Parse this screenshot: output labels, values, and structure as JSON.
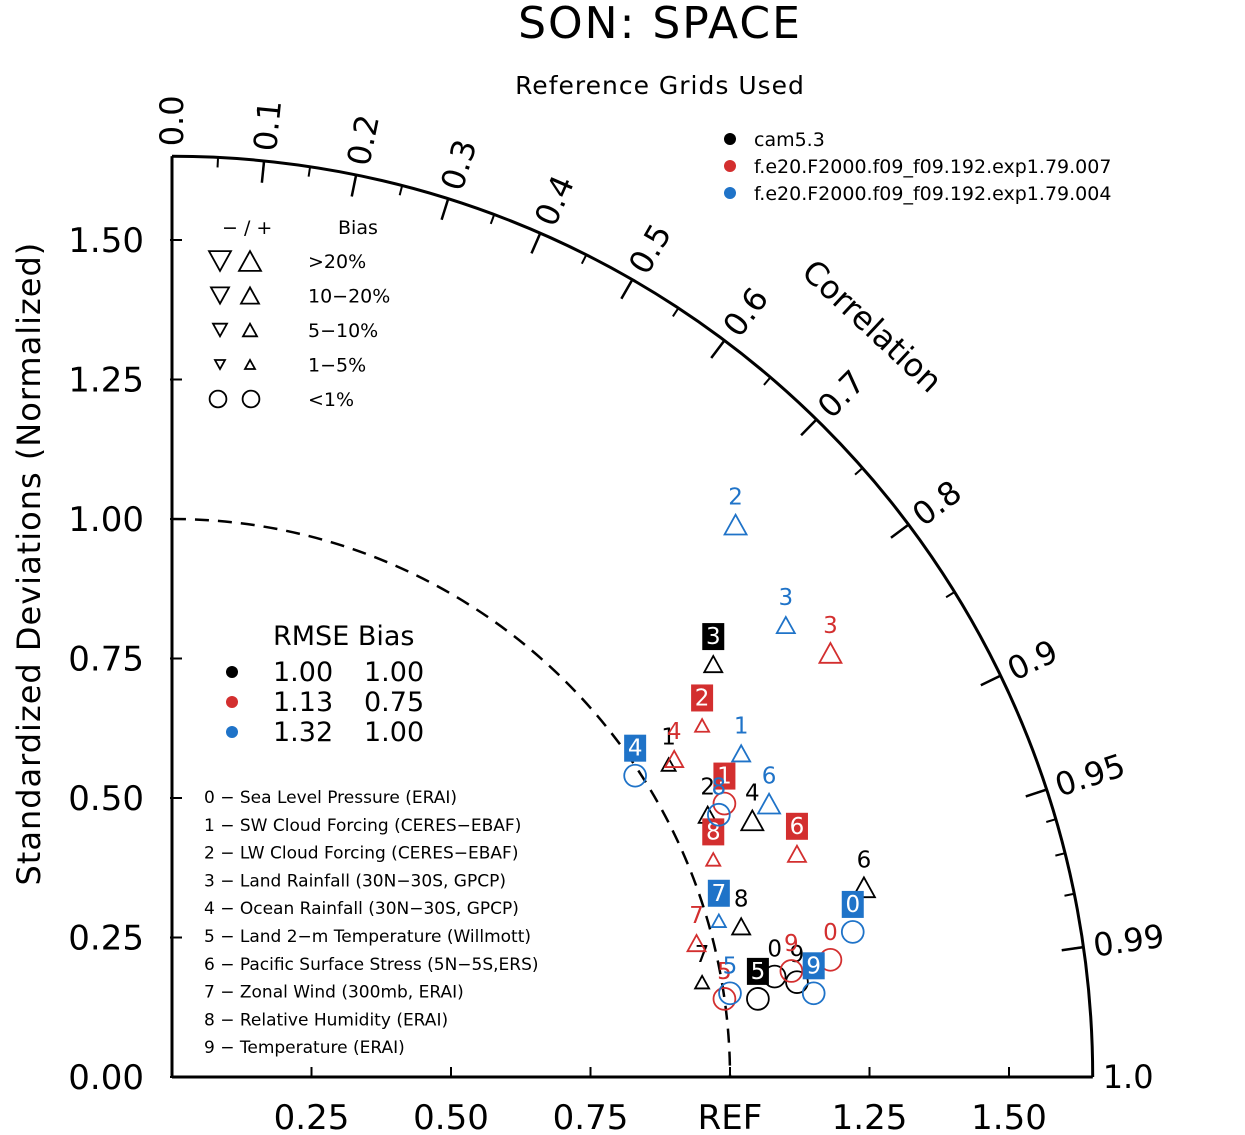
{
  "title": "SON: SPACE",
  "subtitle": "Reference Grids Used",
  "colors": {
    "cam5.3": "#000000",
    "exp007": "#d32f2f",
    "exp004": "#1f73c8"
  },
  "chart_data": {
    "type": "scatter",
    "diagram": "taylor",
    "title": "SON: SPACE",
    "subtitle": "Reference Grids Used",
    "ylabel": "Standardized Deviations (Normalized)",
    "correlation_label": "Correlation",
    "x_ticks": [
      "0.25",
      "0.50",
      "0.75",
      "REF",
      "1.25",
      "1.50"
    ],
    "y_ticks": [
      "0.00",
      "0.25",
      "0.50",
      "0.75",
      "1.00",
      "1.25",
      "1.50"
    ],
    "correlation_ticks": [
      "0.0",
      "0.1",
      "0.2",
      "0.3",
      "0.4",
      "0.5",
      "0.6",
      "0.7",
      "0.8",
      "0.9",
      "0.95",
      "0.99",
      "1.0"
    ],
    "std_range": [
      0,
      1.65
    ],
    "series": [
      {
        "name": "cam5.3",
        "color": "#000000",
        "rmse": "1.00",
        "bias": "1.00"
      },
      {
        "name": "f.e20.F2000.f09_f09.192.exp1.79.007",
        "color": "#d32f2f",
        "rmse": "1.13",
        "bias": "0.75"
      },
      {
        "name": "f.e20.F2000.f09_f09.192.exp1.79.004",
        "color": "#1f73c8",
        "rmse": "1.32",
        "bias": "1.00"
      }
    ],
    "bias_legend": {
      "header": [
        "− / +",
        "Bias"
      ],
      "rows": [
        ">20%",
        "10−20%",
        "5−10%",
        "1−5%",
        "<1%"
      ]
    },
    "rmse_legend_header": "RMSE Bias",
    "variables": [
      "0 − Sea Level Pressure (ERAI)",
      "1 − SW Cloud Forcing (CERES−EBAF)",
      "2 − LW Cloud Forcing (CERES−EBAF)",
      "3 − Land Rainfall (30N−30S, GPCP)",
      "4 − Ocean Rainfall (30N−30S, GPCP)",
      "5 − Land 2−m Temperature (Willmott)",
      "6 − Pacific Surface Stress (5N−5S,ERS)",
      "7 − Zonal Wind (300mb, ERAI)",
      "8 − Relative Humidity (ERAI)",
      "9 − Temperature (ERAI)"
    ],
    "points": [
      {
        "series": 0,
        "var": "0",
        "x": 1.08,
        "y": 0.18,
        "marker": "circle",
        "size": 1,
        "boxed": false
      },
      {
        "series": 0,
        "var": "1",
        "x": 0.89,
        "y": 0.56,
        "marker": "up",
        "size": 1,
        "boxed": false
      },
      {
        "series": 0,
        "var": "2",
        "x": 0.96,
        "y": 0.47,
        "marker": "up",
        "size": 2,
        "boxed": false
      },
      {
        "series": 0,
        "var": "3",
        "x": 0.97,
        "y": 0.74,
        "marker": "up",
        "size": 2,
        "boxed": true
      },
      {
        "series": 0,
        "var": "4",
        "x": 1.04,
        "y": 0.46,
        "marker": "up",
        "size": 3,
        "boxed": false
      },
      {
        "series": 0,
        "var": "5",
        "x": 1.05,
        "y": 0.14,
        "marker": "circle",
        "size": 1,
        "boxed": true
      },
      {
        "series": 0,
        "var": "6",
        "x": 1.24,
        "y": 0.34,
        "marker": "up",
        "size": 3,
        "boxed": false
      },
      {
        "series": 0,
        "var": "7",
        "x": 0.95,
        "y": 0.17,
        "marker": "up",
        "size": 1,
        "boxed": false
      },
      {
        "series": 0,
        "var": "8",
        "x": 1.02,
        "y": 0.27,
        "marker": "up",
        "size": 2,
        "boxed": false
      },
      {
        "series": 0,
        "var": "9",
        "x": 1.12,
        "y": 0.17,
        "marker": "circle",
        "size": 1,
        "boxed": false
      },
      {
        "series": 1,
        "var": "0",
        "x": 1.18,
        "y": 0.21,
        "marker": "circle",
        "size": 1,
        "boxed": false
      },
      {
        "series": 1,
        "var": "1",
        "x": 0.99,
        "y": 0.49,
        "marker": "circle",
        "size": 1,
        "boxed": true
      },
      {
        "series": 1,
        "var": "2",
        "x": 0.95,
        "y": 0.63,
        "marker": "up",
        "size": 1,
        "boxed": true
      },
      {
        "series": 1,
        "var": "3",
        "x": 1.18,
        "y": 0.76,
        "marker": "up",
        "size": 3,
        "boxed": false
      },
      {
        "series": 1,
        "var": "4",
        "x": 0.9,
        "y": 0.57,
        "marker": "up",
        "size": 2,
        "boxed": false
      },
      {
        "series": 1,
        "var": "5",
        "x": 0.99,
        "y": 0.14,
        "marker": "circle",
        "size": 1,
        "boxed": false
      },
      {
        "series": 1,
        "var": "6",
        "x": 1.12,
        "y": 0.4,
        "marker": "up",
        "size": 2,
        "boxed": true
      },
      {
        "series": 1,
        "var": "7",
        "x": 0.94,
        "y": 0.24,
        "marker": "up",
        "size": 2,
        "boxed": false
      },
      {
        "series": 1,
        "var": "8",
        "x": 0.97,
        "y": 0.39,
        "marker": "up",
        "size": 1,
        "boxed": true
      },
      {
        "series": 1,
        "var": "9",
        "x": 1.11,
        "y": 0.19,
        "marker": "circle",
        "size": 1,
        "boxed": false
      },
      {
        "series": 2,
        "var": "0",
        "x": 1.22,
        "y": 0.26,
        "marker": "circle",
        "size": 1,
        "boxed": true
      },
      {
        "series": 2,
        "var": "1",
        "x": 1.02,
        "y": 0.58,
        "marker": "up",
        "size": 2,
        "boxed": false
      },
      {
        "series": 2,
        "var": "2",
        "x": 1.01,
        "y": 0.99,
        "marker": "up",
        "size": 3,
        "boxed": false
      },
      {
        "series": 2,
        "var": "3",
        "x": 1.1,
        "y": 0.81,
        "marker": "up",
        "size": 2,
        "boxed": false
      },
      {
        "series": 2,
        "var": "4",
        "x": 0.83,
        "y": 0.54,
        "marker": "circle",
        "size": 1,
        "boxed": true
      },
      {
        "series": 2,
        "var": "5",
        "x": 1.0,
        "y": 0.15,
        "marker": "circle",
        "size": 1,
        "boxed": false
      },
      {
        "series": 2,
        "var": "6",
        "x": 1.07,
        "y": 0.49,
        "marker": "up",
        "size": 3,
        "boxed": false
      },
      {
        "series": 2,
        "var": "7",
        "x": 0.98,
        "y": 0.28,
        "marker": "up",
        "size": 1,
        "boxed": true
      },
      {
        "series": 2,
        "var": "8",
        "x": 0.98,
        "y": 0.47,
        "marker": "circle",
        "size": 1,
        "boxed": false
      },
      {
        "series": 2,
        "var": "9",
        "x": 1.15,
        "y": 0.15,
        "marker": "circle",
        "size": 1,
        "boxed": true
      }
    ]
  }
}
